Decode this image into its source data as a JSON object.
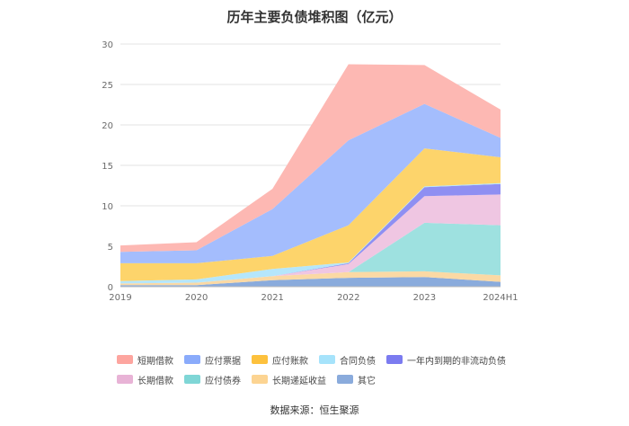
{
  "chart_data": {
    "type": "area",
    "stacked": true,
    "title": "历年主要负债堆积图（亿元）",
    "categories": [
      "2019",
      "2020",
      "2021",
      "2022",
      "2023",
      "2024H1"
    ],
    "ylim": [
      0,
      30
    ],
    "yticks": [
      0,
      5,
      10,
      15,
      20,
      25,
      30
    ],
    "grid": true,
    "legend_position": "bottom",
    "series": [
      {
        "name": "其它",
        "color": "#8aabdc",
        "values": [
          0.2,
          0.2,
          0.8,
          1.1,
          1.2,
          0.6
        ]
      },
      {
        "name": "长期递延收益",
        "color": "#fbd9a4",
        "values": [
          0.2,
          0.3,
          0.5,
          0.7,
          0.7,
          0.8
        ]
      },
      {
        "name": "应付债券",
        "color": "#9ee1e0",
        "values": [
          0,
          0,
          0,
          0,
          6.0,
          6.2
        ]
      },
      {
        "name": "长期借款",
        "color": "#efc6e2",
        "values": [
          0,
          0,
          0,
          1.0,
          3.3,
          3.8
        ]
      },
      {
        "name": "一年内到期的非流动负债",
        "color": "#8f8ff2",
        "values": [
          0,
          0,
          0,
          0.1,
          1.1,
          1.3
        ]
      },
      {
        "name": "合同负债",
        "color": "#b5e6fb",
        "values": [
          0.3,
          0.4,
          0.9,
          0.1,
          0.1,
          0.1
        ]
      },
      {
        "name": "应付账款",
        "color": "#fdd46b",
        "values": [
          2.2,
          2.0,
          1.6,
          4.6,
          4.7,
          3.2
        ]
      },
      {
        "name": "应付票据",
        "color": "#a4bdfd",
        "values": [
          1.4,
          1.6,
          5.8,
          10.5,
          5.5,
          2.4
        ]
      },
      {
        "name": "短期借款",
        "color": "#fdb8b3",
        "values": [
          0.8,
          1.0,
          2.5,
          9.4,
          4.8,
          3.5
        ]
      }
    ]
  },
  "legend": {
    "row1": [
      {
        "label": "短期借款",
        "color": "#fda59f"
      },
      {
        "label": "应付票据",
        "color": "#8aabfb"
      },
      {
        "label": "应付账款",
        "color": "#fdc13d"
      },
      {
        "label": "合同负债",
        "color": "#a6e3fb"
      },
      {
        "label": "一年内到期的非流动负债",
        "color": "#7b7bf0"
      }
    ],
    "row2": [
      {
        "label": "长期借款",
        "color": "#e8b3d6"
      },
      {
        "label": "应付债券",
        "color": "#7fd6d6"
      },
      {
        "label": "长期递延收益",
        "color": "#fcd492"
      },
      {
        "label": "其它",
        "color": "#8aabdc"
      }
    ]
  },
  "source": "数据来源：恒生聚源"
}
